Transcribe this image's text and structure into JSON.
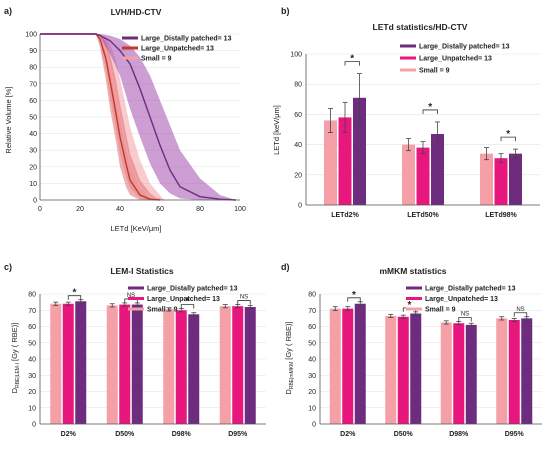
{
  "colors": {
    "small": "#f4a0a6",
    "unpatched": "#e8177e",
    "patched": "#6e2c7e",
    "unpatched_line": "#c0392b",
    "patched_line": "#6e2c7e",
    "small_line": "#f4a0a6"
  },
  "legend_labels": [
    "Large_Distally patched= 13",
    "Large_Unpatched= 13",
    "Small = 9"
  ],
  "chart_data": [
    {
      "panel": "a)",
      "type": "line",
      "title": "LVH/HD-CTV",
      "xlabel": "LETd [KeV/μm]",
      "ylabel": "Relative Volume [%]",
      "xlim": [
        0,
        100
      ],
      "ylim": [
        0,
        100
      ],
      "xticks": [
        "0",
        "20",
        "40",
        "60",
        "80",
        "100"
      ],
      "yticks": [
        "0",
        "10",
        "20",
        "30",
        "40",
        "50",
        "60",
        "70",
        "80",
        "90",
        "100"
      ],
      "legend": [
        "Large_Distally patched= 13",
        "Large_Unpatched= 13",
        "Small = 9"
      ],
      "series": [
        {
          "name": "Large_Distally patched= 13",
          "color_key": "patched",
          "x": [
            0,
            28,
            30,
            35,
            40,
            45,
            50,
            55,
            60,
            65,
            70,
            80,
            90,
            98
          ],
          "y": [
            100,
            100,
            99,
            96,
            90,
            82,
            67,
            50,
            33,
            18,
            8,
            2,
            0.5,
            0
          ],
          "lower": [
            100,
            100,
            98,
            88,
            75,
            55,
            38,
            22,
            10,
            4,
            1,
            0,
            0,
            0
          ],
          "upper": [
            100,
            100,
            100,
            99,
            97,
            93,
            86,
            75,
            60,
            45,
            30,
            13,
            3,
            0
          ]
        },
        {
          "name": "Large_Unpatched= 13",
          "color_key": "unpatched",
          "x": [
            0,
            28,
            30,
            33,
            35,
            38,
            40,
            43,
            45,
            50,
            55,
            60
          ],
          "y": [
            100,
            100,
            97,
            85,
            72,
            52,
            38,
            22,
            12,
            3,
            0.5,
            0
          ],
          "lower": [
            100,
            100,
            92,
            72,
            55,
            35,
            20,
            8,
            3,
            0,
            0,
            0
          ],
          "upper": [
            100,
            100,
            100,
            95,
            88,
            72,
            58,
            40,
            28,
            12,
            4,
            0
          ]
        },
        {
          "name": "Small = 9",
          "color_key": "small",
          "x": [
            0,
            28,
            30,
            33,
            35,
            38,
            40,
            43,
            45,
            50,
            55,
            62
          ],
          "y": [
            100,
            100,
            98,
            90,
            80,
            63,
            50,
            33,
            22,
            8,
            2,
            0
          ],
          "lower": [
            100,
            100,
            94,
            78,
            62,
            42,
            28,
            14,
            7,
            1,
            0,
            0
          ],
          "upper": [
            100,
            100,
            100,
            98,
            94,
            84,
            73,
            56,
            44,
            24,
            10,
            0
          ]
        }
      ]
    },
    {
      "panel": "b)",
      "type": "bar",
      "title": "LETd statistics/HD-CTV",
      "ylabel": "LETd [keV/μm]",
      "ylim": [
        0,
        100
      ],
      "yticks": [
        "0",
        "20",
        "40",
        "60",
        "80",
        "100"
      ],
      "categories": [
        "LETd2%",
        "LETd50%",
        "LETd98%"
      ],
      "legend": [
        "Large_Distally patched= 13",
        "Large_Unpatched= 13",
        "Small = 9"
      ],
      "series": [
        {
          "name": "Small = 9",
          "color_key": "small",
          "values": [
            56,
            40,
            34
          ],
          "errors": [
            8,
            4,
            4
          ]
        },
        {
          "name": "Large_Unpatched= 13",
          "color_key": "unpatched",
          "values": [
            58,
            38,
            31
          ],
          "errors": [
            10,
            4,
            3
          ]
        },
        {
          "name": "Large_Distally patched= 13",
          "color_key": "patched",
          "values": [
            71,
            47,
            34
          ],
          "errors": [
            16,
            8,
            3
          ]
        }
      ],
      "annotations": [
        "*",
        "*",
        "*"
      ]
    },
    {
      "panel": "c)",
      "type": "bar",
      "title": "LEM-I Statistics",
      "ylabel_main": "D",
      "ylabel_sub": "RBE|LEM-I",
      "ylabel_tail": "[Gy ( RBE)]",
      "ylim": [
        0,
        80
      ],
      "yticks": [
        "0",
        "10",
        "20",
        "30",
        "40",
        "50",
        "60",
        "70",
        "80"
      ],
      "categories": [
        "D2%",
        "D50%",
        "D98%",
        "D95%"
      ],
      "legend": [
        "Large_Distally patched= 13",
        "Large_Unpatched= 13",
        "Small = 9"
      ],
      "series": [
        {
          "name": "Small = 9",
          "color_key": "small",
          "values": [
            74,
            73,
            70.5,
            72.5
          ],
          "errors": [
            1,
            1,
            1,
            1
          ]
        },
        {
          "name": "Large_Unpatched= 13",
          "color_key": "unpatched",
          "values": [
            74,
            73.5,
            70,
            72.5
          ],
          "errors": [
            1,
            1,
            1,
            1
          ]
        },
        {
          "name": "Large_Distally patched= 13",
          "color_key": "patched",
          "values": [
            75.5,
            73.5,
            67.5,
            72
          ],
          "errors": [
            1,
            1,
            1,
            1
          ]
        }
      ],
      "annotations": [
        "*",
        "NS",
        "*",
        "NS"
      ]
    },
    {
      "panel": "d)",
      "type": "bar",
      "title": "mMKM statistics",
      "ylabel_main": "D",
      "ylabel_sub": "RBE|mMKM",
      "ylabel_tail": "[Gy ( RBE)]",
      "ylim": [
        0,
        80
      ],
      "yticks": [
        "0",
        "10",
        "20",
        "30",
        "40",
        "50",
        "60",
        "70",
        "80"
      ],
      "categories": [
        "D2%",
        "D50%",
        "D98%",
        "D95%"
      ],
      "legend": [
        "Large_Distally patched= 13",
        "Large_Unpatched= 13",
        "Small = 9"
      ],
      "series": [
        {
          "name": "Small = 9",
          "color_key": "small",
          "values": [
            71,
            66.5,
            62.5,
            65
          ],
          "errors": [
            1.2,
            1,
            1,
            1
          ]
        },
        {
          "name": "Large_Unpatched= 13",
          "color_key": "unpatched",
          "values": [
            71,
            66,
            62,
            64
          ],
          "errors": [
            1.2,
            1,
            1,
            1
          ]
        },
        {
          "name": "Large_Distally patched= 13",
          "color_key": "patched",
          "values": [
            74,
            68,
            61,
            65
          ],
          "errors": [
            1.2,
            1,
            1,
            1
          ]
        }
      ],
      "annotations": [
        "*",
        "*",
        "NS",
        "NS"
      ]
    }
  ]
}
